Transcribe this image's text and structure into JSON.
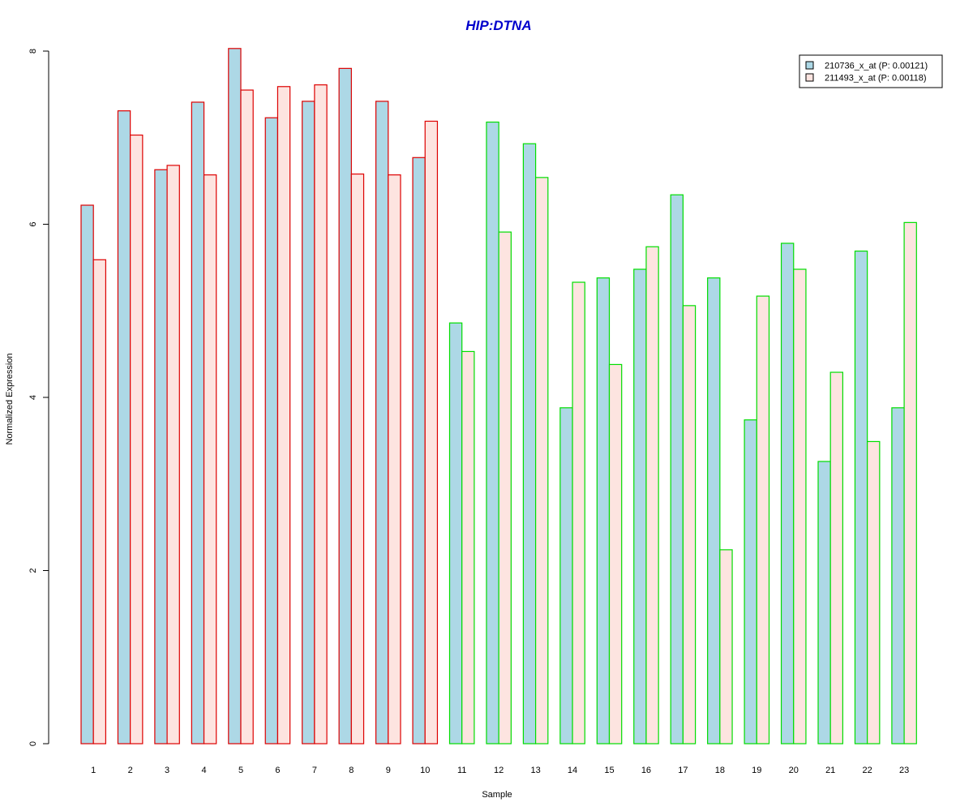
{
  "chart_data": {
    "type": "bar",
    "title": "HIP:DTNA",
    "xlabel": "Sample",
    "ylabel": "Normalized Expression",
    "ylim": [
      0,
      8
    ],
    "yticks": [
      "0",
      "2",
      "4",
      "6",
      "8"
    ],
    "grid": false,
    "legend_position": "top-right",
    "categories": [
      "1",
      "2",
      "3",
      "4",
      "5",
      "6",
      "7",
      "8",
      "9",
      "10",
      "11",
      "12",
      "13",
      "14",
      "15",
      "16",
      "17",
      "18",
      "19",
      "20",
      "21",
      "22",
      "23"
    ],
    "series": [
      {
        "name": "210736_x_at (P: 0.00121)",
        "fill": "#add8e6",
        "values": [
          6.22,
          7.31,
          6.63,
          7.41,
          8.03,
          7.23,
          7.42,
          7.8,
          7.42,
          6.77,
          4.86,
          7.18,
          6.93,
          3.88,
          5.38,
          5.48,
          6.34,
          5.38,
          3.74,
          5.78,
          3.26,
          5.69,
          3.88
        ]
      },
      {
        "name": "211493_x_at (P: 0.00118)",
        "fill": "#fde4e0",
        "values": [
          5.59,
          7.03,
          6.68,
          6.57,
          7.55,
          7.59,
          7.61,
          6.58,
          6.57,
          7.19,
          4.53,
          5.91,
          6.54,
          5.33,
          4.38,
          5.74,
          5.06,
          2.24,
          5.17,
          5.48,
          4.29,
          3.49,
          6.02
        ]
      }
    ],
    "groups": [
      {
        "samples": [
          "1",
          "2",
          "3",
          "4",
          "5",
          "6",
          "7",
          "8",
          "9",
          "10"
        ],
        "border_color": "#dd0000"
      },
      {
        "samples": [
          "11",
          "12",
          "13",
          "14",
          "15",
          "16",
          "17",
          "18",
          "19",
          "20",
          "21",
          "22",
          "23"
        ],
        "border_color": "#00dd00"
      }
    ]
  }
}
